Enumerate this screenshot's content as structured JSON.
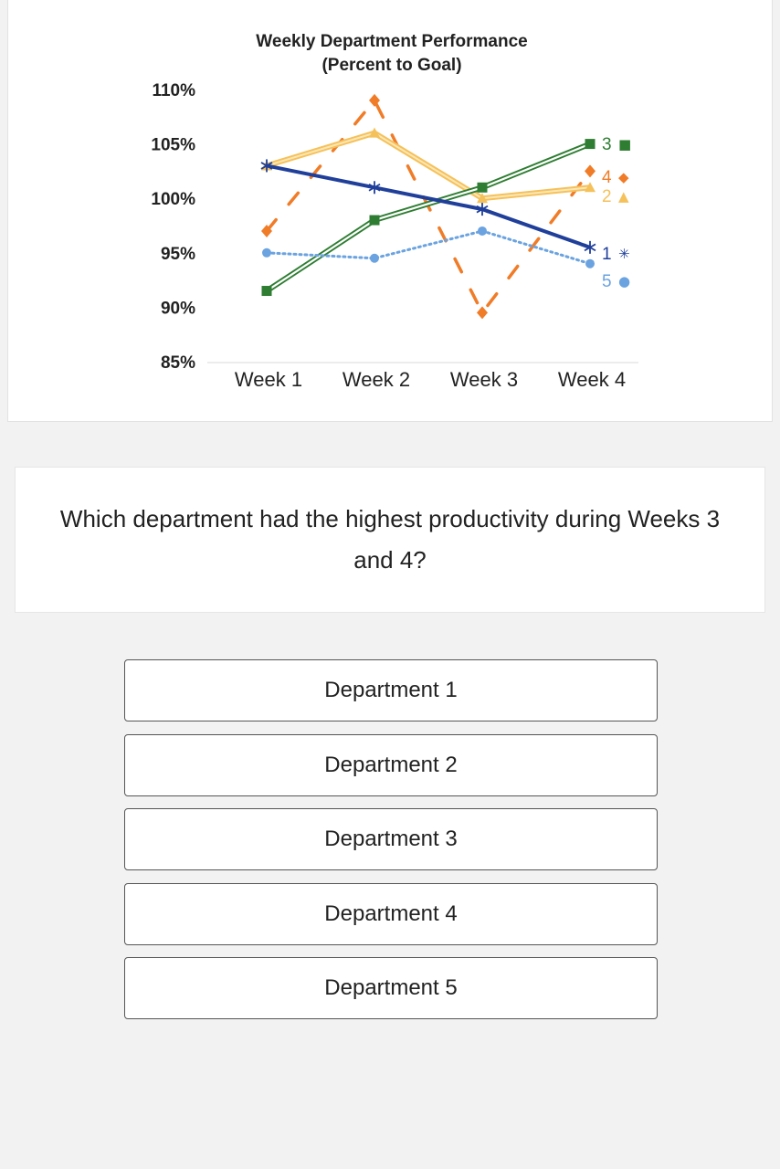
{
  "chart_data": {
    "type": "line",
    "title": "Weekly Department Performance",
    "subtitle": "(Percent to Goal)",
    "categories": [
      "Week 1",
      "Week 2",
      "Week 3",
      "Week 4"
    ],
    "ylim": [
      85,
      110
    ],
    "y_ticks": [
      {
        "value": 110,
        "label": "110%"
      },
      {
        "value": 105,
        "label": "105%"
      },
      {
        "value": 100,
        "label": "100%"
      },
      {
        "value": 95,
        "label": "95%"
      },
      {
        "value": 90,
        "label": "90%"
      },
      {
        "value": 85,
        "label": "85%"
      }
    ],
    "grid": false,
    "legend": "inline labels at end of lines",
    "series": [
      {
        "name": "1",
        "end_label": "1",
        "marker_glyph": "✳",
        "color": "#1f3f9a",
        "style": "solid",
        "marker": "asterisk",
        "values": [
          103,
          101,
          99,
          95.5
        ]
      },
      {
        "name": "2",
        "end_label": "2",
        "marker_glyph": "▲",
        "color": "#f5c15a",
        "style": "solid-outline",
        "marker": "triangle",
        "values": [
          103,
          106,
          100,
          101
        ]
      },
      {
        "name": "3",
        "end_label": "3",
        "marker_glyph": "■",
        "color": "#2e7d32",
        "style": "double",
        "marker": "square",
        "values": [
          91.5,
          98,
          101,
          105
        ]
      },
      {
        "name": "4",
        "end_label": "4",
        "marker_glyph": "◆",
        "color": "#f07c28",
        "style": "dashed",
        "marker": "diamond",
        "values": [
          97,
          109,
          89.5,
          102.5
        ]
      },
      {
        "name": "5",
        "end_label": "5",
        "marker_glyph": "●",
        "color": "#6aa3e0",
        "style": "dotted",
        "marker": "circle",
        "values": [
          95,
          94.5,
          97,
          94
        ]
      }
    ]
  },
  "question": {
    "text": "Which department had the highest productivity during Weeks 3 and 4?"
  },
  "answers": [
    {
      "label": "Department 1"
    },
    {
      "label": "Department 2"
    },
    {
      "label": "Department 3"
    },
    {
      "label": "Department 4"
    },
    {
      "label": "Department 5"
    }
  ]
}
